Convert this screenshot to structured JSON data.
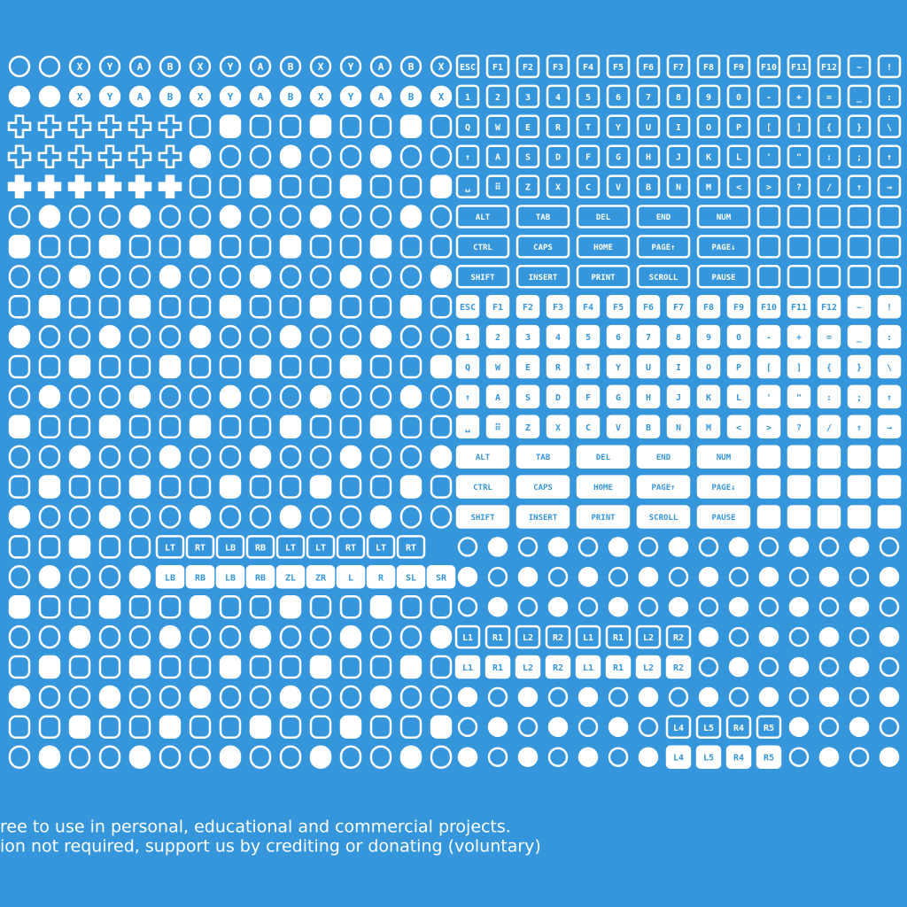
{
  "face_buttons": [
    "A",
    "B",
    "X",
    "Y"
  ],
  "keyboard": {
    "rows": [
      [
        "ESC",
        "F1",
        "F2",
        "F3",
        "F4",
        "F5",
        "F6",
        "F7",
        "F8",
        "F9",
        "F10",
        "F11",
        "F12",
        "~",
        "!"
      ],
      [
        "1",
        "2",
        "3",
        "4",
        "5",
        "6",
        "7",
        "8",
        "9",
        "0",
        "-",
        "+",
        "=",
        "_",
        ":"
      ],
      [
        "Q",
        "W",
        "E",
        "R",
        "T",
        "Y",
        "U",
        "I",
        "O",
        "P",
        "[",
        "]",
        "{",
        "}",
        "\\"
      ],
      [
        "↑",
        "A",
        "S",
        "D",
        "F",
        "G",
        "H",
        "J",
        "K",
        "L",
        "'",
        "\"",
        ":",
        ";",
        "↑"
      ],
      [
        "␣",
        "⠿",
        "Z",
        "X",
        "C",
        "V",
        "B",
        "N",
        "M",
        "<",
        ">",
        "?",
        "/",
        "↑",
        "→"
      ]
    ]
  },
  "wide_keys": [
    [
      "ALT",
      "TAB",
      "DEL",
      "END",
      "NUM"
    ],
    [
      "CTRL",
      "CAPS",
      "HOME",
      "PAGE↑",
      "PAGE↓"
    ],
    [
      "SHIFT",
      "INSERT",
      "PRINT",
      "SCROLL",
      "PAUSE"
    ]
  ],
  "shoulder_labels": [
    [
      "LT",
      "RT",
      "LB",
      "RB",
      "LT",
      "LT",
      "RT",
      "LT",
      "RT"
    ],
    [
      "LB",
      "RB",
      "LB",
      "RB",
      "ZL",
      "ZR",
      "L",
      "R",
      "SL",
      "SR"
    ]
  ],
  "back_labels": [
    "L1",
    "R1",
    "L2",
    "R2",
    "L4",
    "L5",
    "R4",
    "R5"
  ],
  "footer": [
    "ree to use in personal, educational and commercial projects.",
    "ion not required, support us by crediting or donating (voluntary)"
  ]
}
